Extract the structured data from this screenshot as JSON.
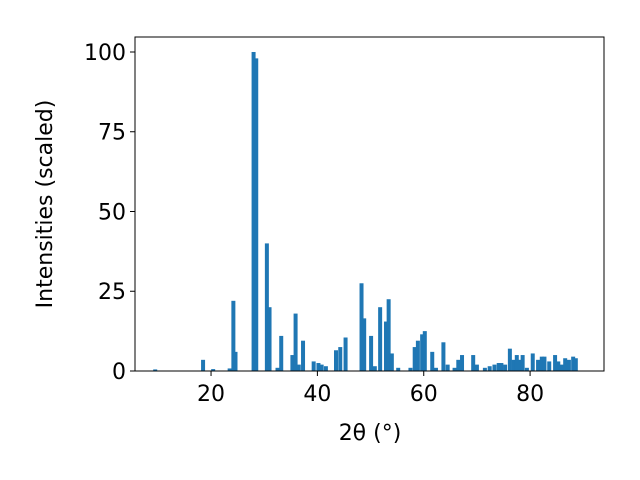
{
  "chart_data": {
    "type": "bar",
    "x": [
      9.5,
      18.5,
      20.4,
      23.5,
      24.2,
      24.6,
      28.0,
      28.5,
      30.5,
      31.0,
      32.5,
      33.2,
      35.3,
      35.9,
      36.5,
      37.3,
      39.3,
      40.2,
      40.8,
      41.6,
      43.5,
      44.3,
      45.3,
      48.3,
      48.8,
      50.1,
      50.8,
      51.8,
      52.9,
      53.4,
      54.0,
      55.2,
      57.5,
      58.3,
      58.9,
      59.7,
      60.2,
      61.6,
      62.3,
      63.7,
      64.5,
      65.8,
      66.5,
      67.2,
      69.3,
      70.0,
      71.5,
      72.4,
      73.3,
      74.1,
      74.6,
      75.3,
      76.2,
      76.9,
      77.5,
      78.1,
      78.6,
      79.4,
      80.5,
      81.5,
      82.2,
      82.7,
      83.6,
      84.7,
      85.3,
      86.0,
      86.6,
      87.3,
      88.1,
      88.6
    ],
    "values": [
      0.5,
      3.5,
      0.6,
      0.8,
      22,
      6,
      100,
      98,
      40,
      20,
      1,
      11,
      5,
      18,
      2,
      9.5,
      3,
      2.5,
      2,
      1.5,
      6.5,
      7.5,
      10.5,
      27.5,
      16.5,
      11,
      1.5,
      20,
      15.5,
      22.5,
      5.5,
      1,
      1,
      7.5,
      9.5,
      11.5,
      12.5,
      6,
      1,
      9,
      2,
      1,
      3.5,
      5,
      5,
      2,
      1,
      1.5,
      2,
      2.5,
      2.5,
      2,
      7,
      3.5,
      5,
      3.5,
      5,
      1,
      5.5,
      3.5,
      4.5,
      4.5,
      3,
      5,
      3,
      2,
      4,
      3.5,
      4.5,
      4
    ],
    "color": "#1f77b4",
    "xlabel": "2θ (°)",
    "ylabel": "Intensities (scaled)",
    "xlim": [
      5.7,
      93.9
    ],
    "ylim": [
      0,
      104.7
    ],
    "xticks": [
      20,
      40,
      60,
      80
    ],
    "yticks": [
      0,
      25,
      50,
      75,
      100
    ]
  }
}
